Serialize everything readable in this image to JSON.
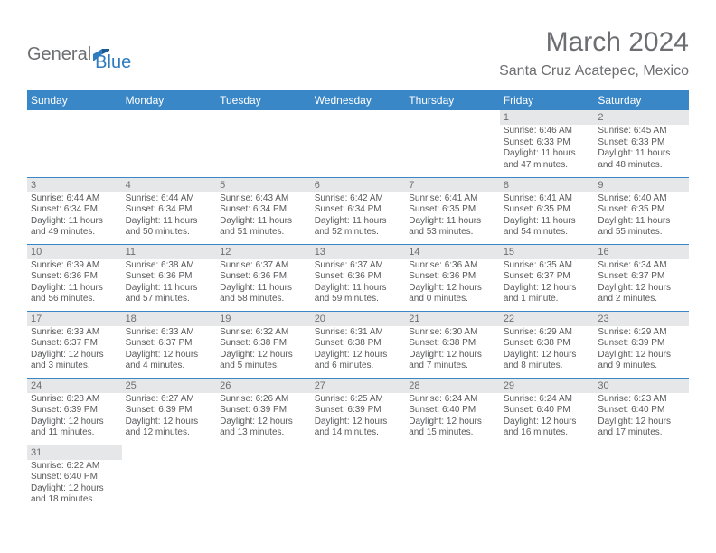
{
  "branding": {
    "logo_part1": "General",
    "logo_part2": "Blue",
    "logo_color1": "#6d6e71",
    "logo_color2": "#2f7bbf"
  },
  "header": {
    "title": "March 2024",
    "location": "Santa Cruz Acatepec, Mexico"
  },
  "colors": {
    "header_bg": "#3a87c8",
    "header_text": "#ffffff",
    "daynum_bg": "#e6e7e8",
    "body_text": "#58595b",
    "rule": "#3a87c8",
    "page_bg": "#ffffff"
  },
  "fontsizes": {
    "title_pt": 30,
    "location_pt": 16,
    "dayheader_pt": 12,
    "daynum_pt": 11,
    "cell_pt": 10
  },
  "weekdays": [
    "Sunday",
    "Monday",
    "Tuesday",
    "Wednesday",
    "Thursday",
    "Friday",
    "Saturday"
  ],
  "weeks": [
    [
      null,
      null,
      null,
      null,
      null,
      {
        "num": "1",
        "sunrise": "Sunrise: 6:46 AM",
        "sunset": "Sunset: 6:33 PM",
        "daylight": "Daylight: 11 hours and 47 minutes."
      },
      {
        "num": "2",
        "sunrise": "Sunrise: 6:45 AM",
        "sunset": "Sunset: 6:33 PM",
        "daylight": "Daylight: 11 hours and 48 minutes."
      }
    ],
    [
      {
        "num": "3",
        "sunrise": "Sunrise: 6:44 AM",
        "sunset": "Sunset: 6:34 PM",
        "daylight": "Daylight: 11 hours and 49 minutes."
      },
      {
        "num": "4",
        "sunrise": "Sunrise: 6:44 AM",
        "sunset": "Sunset: 6:34 PM",
        "daylight": "Daylight: 11 hours and 50 minutes."
      },
      {
        "num": "5",
        "sunrise": "Sunrise: 6:43 AM",
        "sunset": "Sunset: 6:34 PM",
        "daylight": "Daylight: 11 hours and 51 minutes."
      },
      {
        "num": "6",
        "sunrise": "Sunrise: 6:42 AM",
        "sunset": "Sunset: 6:34 PM",
        "daylight": "Daylight: 11 hours and 52 minutes."
      },
      {
        "num": "7",
        "sunrise": "Sunrise: 6:41 AM",
        "sunset": "Sunset: 6:35 PM",
        "daylight": "Daylight: 11 hours and 53 minutes."
      },
      {
        "num": "8",
        "sunrise": "Sunrise: 6:41 AM",
        "sunset": "Sunset: 6:35 PM",
        "daylight": "Daylight: 11 hours and 54 minutes."
      },
      {
        "num": "9",
        "sunrise": "Sunrise: 6:40 AM",
        "sunset": "Sunset: 6:35 PM",
        "daylight": "Daylight: 11 hours and 55 minutes."
      }
    ],
    [
      {
        "num": "10",
        "sunrise": "Sunrise: 6:39 AM",
        "sunset": "Sunset: 6:36 PM",
        "daylight": "Daylight: 11 hours and 56 minutes."
      },
      {
        "num": "11",
        "sunrise": "Sunrise: 6:38 AM",
        "sunset": "Sunset: 6:36 PM",
        "daylight": "Daylight: 11 hours and 57 minutes."
      },
      {
        "num": "12",
        "sunrise": "Sunrise: 6:37 AM",
        "sunset": "Sunset: 6:36 PM",
        "daylight": "Daylight: 11 hours and 58 minutes."
      },
      {
        "num": "13",
        "sunrise": "Sunrise: 6:37 AM",
        "sunset": "Sunset: 6:36 PM",
        "daylight": "Daylight: 11 hours and 59 minutes."
      },
      {
        "num": "14",
        "sunrise": "Sunrise: 6:36 AM",
        "sunset": "Sunset: 6:36 PM",
        "daylight": "Daylight: 12 hours and 0 minutes."
      },
      {
        "num": "15",
        "sunrise": "Sunrise: 6:35 AM",
        "sunset": "Sunset: 6:37 PM",
        "daylight": "Daylight: 12 hours and 1 minute."
      },
      {
        "num": "16",
        "sunrise": "Sunrise: 6:34 AM",
        "sunset": "Sunset: 6:37 PM",
        "daylight": "Daylight: 12 hours and 2 minutes."
      }
    ],
    [
      {
        "num": "17",
        "sunrise": "Sunrise: 6:33 AM",
        "sunset": "Sunset: 6:37 PM",
        "daylight": "Daylight: 12 hours and 3 minutes."
      },
      {
        "num": "18",
        "sunrise": "Sunrise: 6:33 AM",
        "sunset": "Sunset: 6:37 PM",
        "daylight": "Daylight: 12 hours and 4 minutes."
      },
      {
        "num": "19",
        "sunrise": "Sunrise: 6:32 AM",
        "sunset": "Sunset: 6:38 PM",
        "daylight": "Daylight: 12 hours and 5 minutes."
      },
      {
        "num": "20",
        "sunrise": "Sunrise: 6:31 AM",
        "sunset": "Sunset: 6:38 PM",
        "daylight": "Daylight: 12 hours and 6 minutes."
      },
      {
        "num": "21",
        "sunrise": "Sunrise: 6:30 AM",
        "sunset": "Sunset: 6:38 PM",
        "daylight": "Daylight: 12 hours and 7 minutes."
      },
      {
        "num": "22",
        "sunrise": "Sunrise: 6:29 AM",
        "sunset": "Sunset: 6:38 PM",
        "daylight": "Daylight: 12 hours and 8 minutes."
      },
      {
        "num": "23",
        "sunrise": "Sunrise: 6:29 AM",
        "sunset": "Sunset: 6:39 PM",
        "daylight": "Daylight: 12 hours and 9 minutes."
      }
    ],
    [
      {
        "num": "24",
        "sunrise": "Sunrise: 6:28 AM",
        "sunset": "Sunset: 6:39 PM",
        "daylight": "Daylight: 12 hours and 11 minutes."
      },
      {
        "num": "25",
        "sunrise": "Sunrise: 6:27 AM",
        "sunset": "Sunset: 6:39 PM",
        "daylight": "Daylight: 12 hours and 12 minutes."
      },
      {
        "num": "26",
        "sunrise": "Sunrise: 6:26 AM",
        "sunset": "Sunset: 6:39 PM",
        "daylight": "Daylight: 12 hours and 13 minutes."
      },
      {
        "num": "27",
        "sunrise": "Sunrise: 6:25 AM",
        "sunset": "Sunset: 6:39 PM",
        "daylight": "Daylight: 12 hours and 14 minutes."
      },
      {
        "num": "28",
        "sunrise": "Sunrise: 6:24 AM",
        "sunset": "Sunset: 6:40 PM",
        "daylight": "Daylight: 12 hours and 15 minutes."
      },
      {
        "num": "29",
        "sunrise": "Sunrise: 6:24 AM",
        "sunset": "Sunset: 6:40 PM",
        "daylight": "Daylight: 12 hours and 16 minutes."
      },
      {
        "num": "30",
        "sunrise": "Sunrise: 6:23 AM",
        "sunset": "Sunset: 6:40 PM",
        "daylight": "Daylight: 12 hours and 17 minutes."
      }
    ],
    [
      {
        "num": "31",
        "sunrise": "Sunrise: 6:22 AM",
        "sunset": "Sunset: 6:40 PM",
        "daylight": "Daylight: 12 hours and 18 minutes."
      },
      null,
      null,
      null,
      null,
      null,
      null
    ]
  ]
}
